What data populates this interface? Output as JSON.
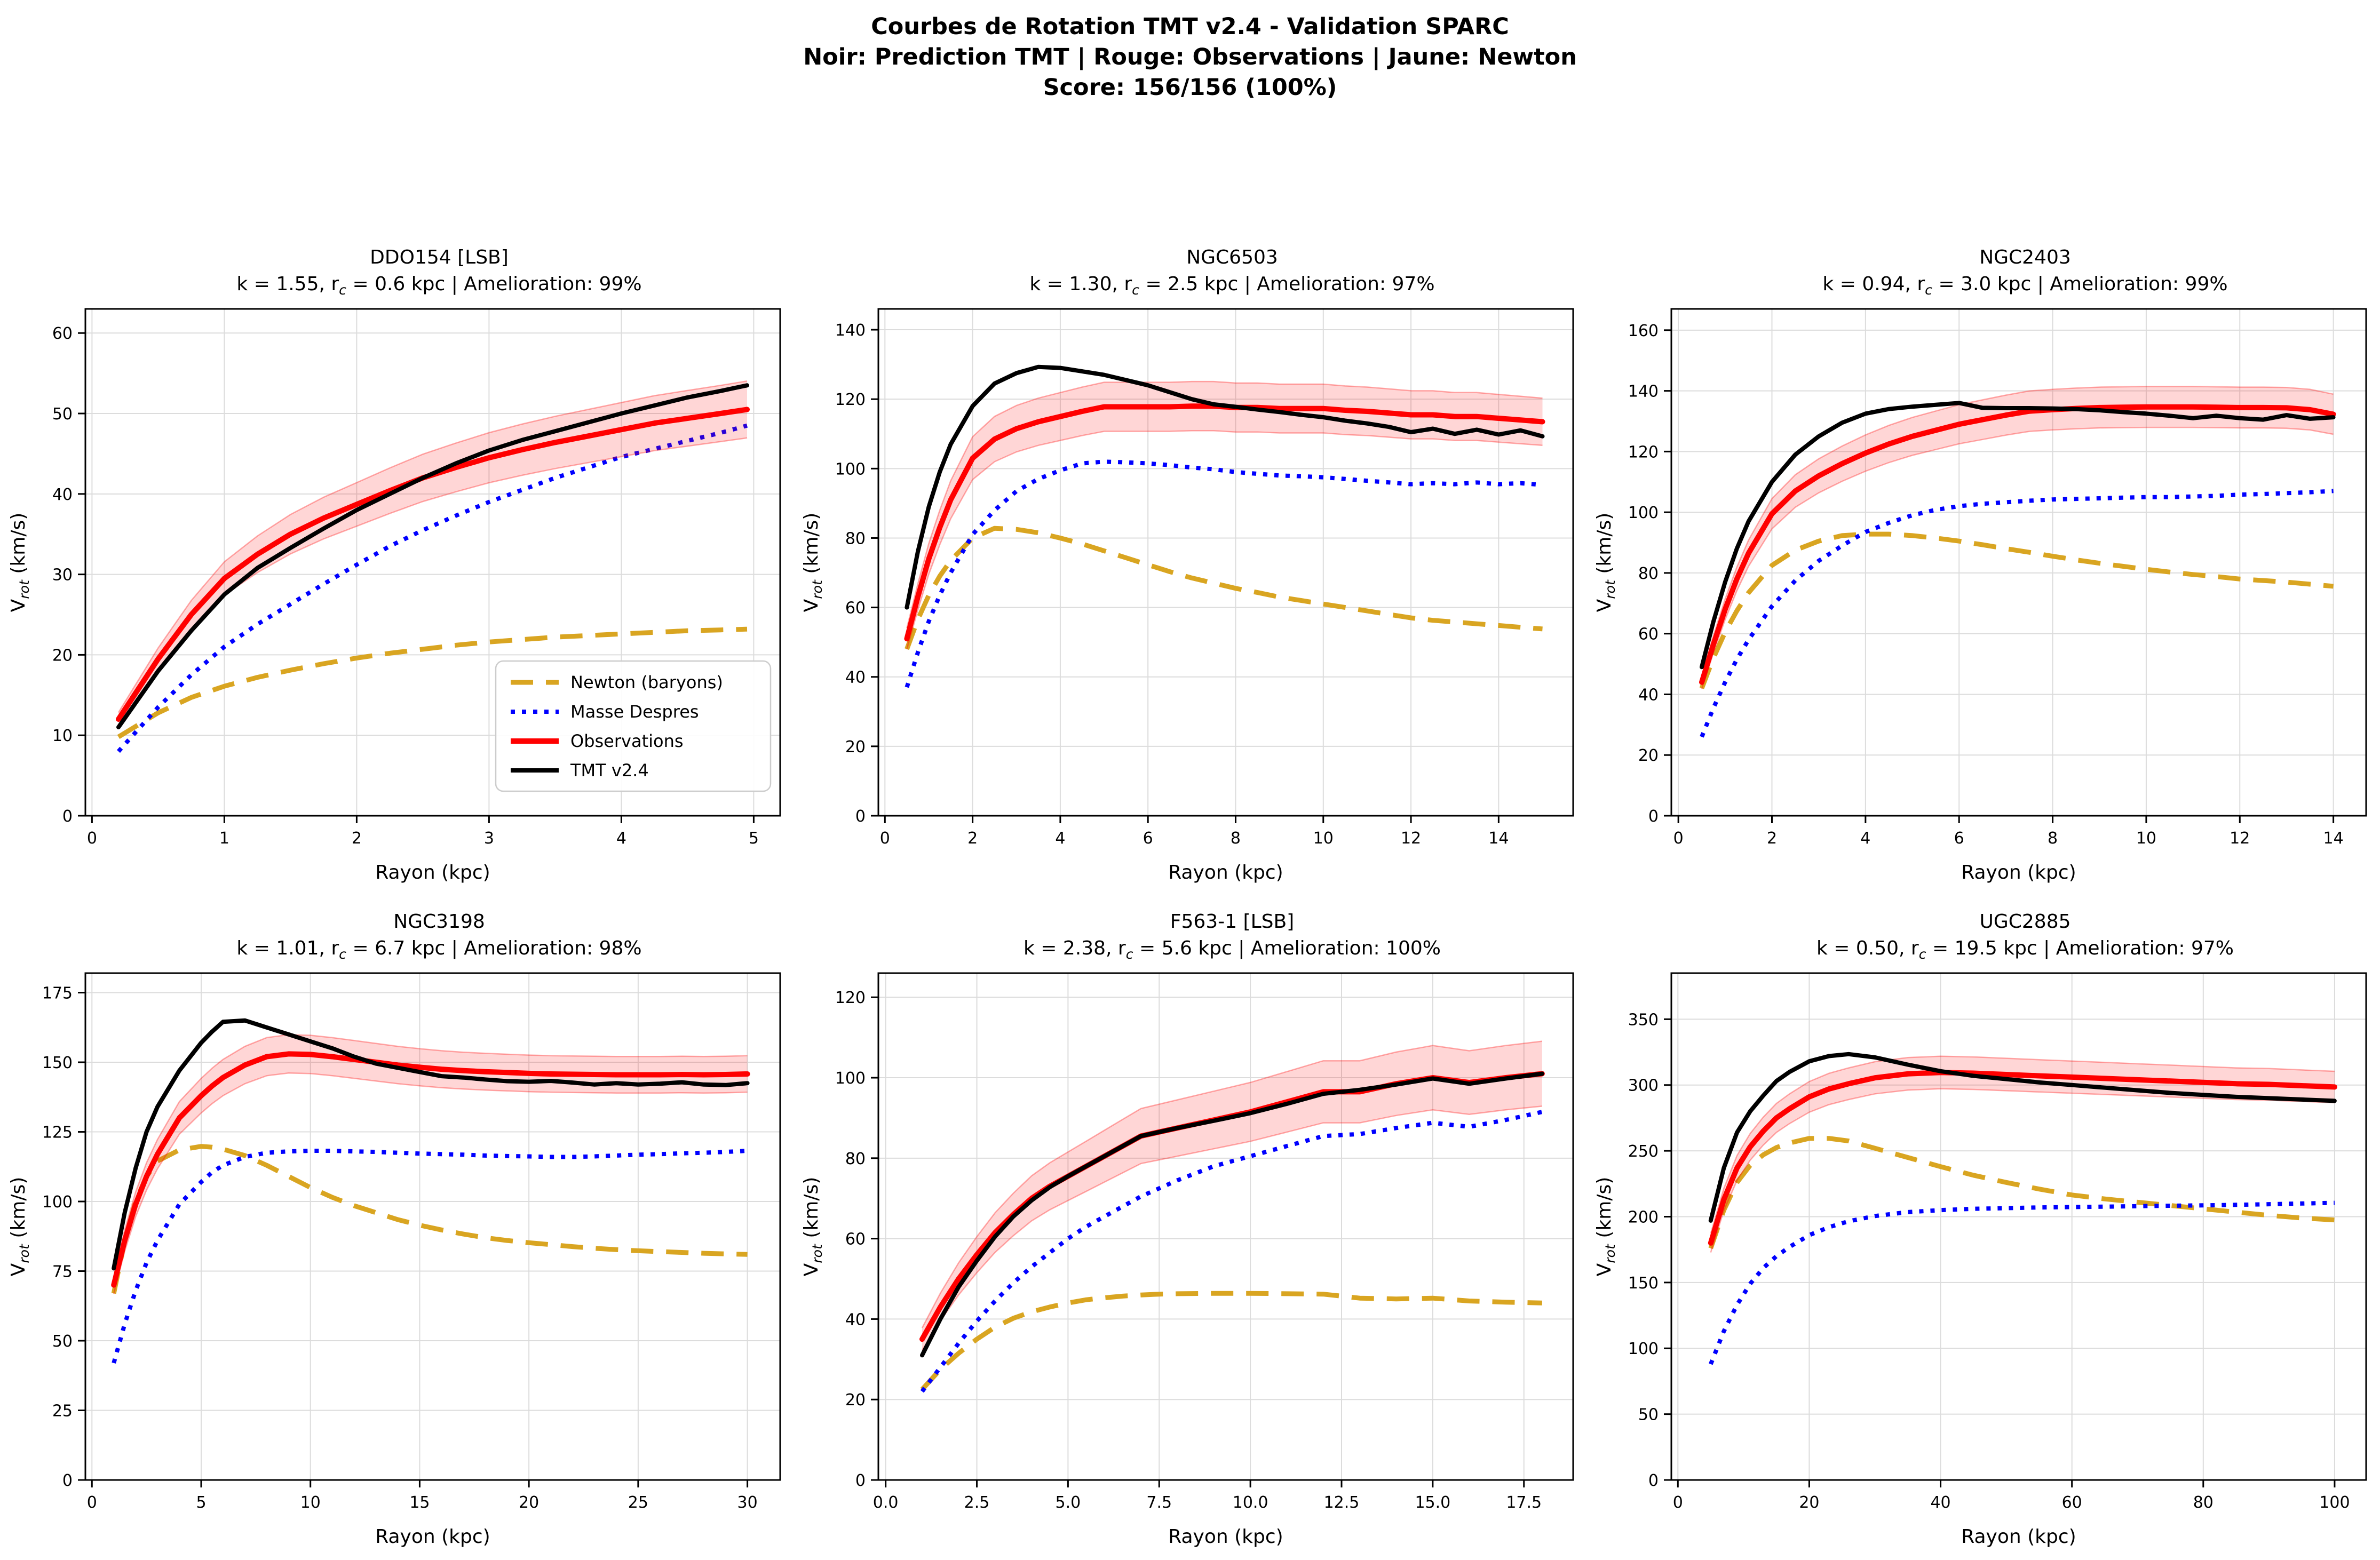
{
  "header": {
    "line1": "Courbes de Rotation TMT v2.4 - Validation SPARC",
    "line2": "Noir: Prediction TMT | Rouge: Observations | Jaune: Newton",
    "line3": "Score: 156/156 (100%)"
  },
  "colors": {
    "newton": "#D9A521",
    "despres": "#0000FF",
    "observations": "#FF0000",
    "tmt": "#000000",
    "band_fill_opacity": 0.16,
    "band_edge_opacity": 0.32,
    "grid": "#DCDCDC",
    "legend_border": "#CCCCCC"
  },
  "series_styles": {
    "newton": {
      "dash": "42 24",
      "width": 9
    },
    "despres": {
      "dash": "8 13",
      "width": 8
    },
    "observations": {
      "dash": null,
      "width": 10
    },
    "tmt": {
      "dash": null,
      "width": 8
    }
  },
  "legend": {
    "entries": [
      {
        "series": "newton",
        "label": "Newton (baryons)"
      },
      {
        "series": "despres",
        "label": "Masse Despres"
      },
      {
        "series": "observations",
        "label": "Observations"
      },
      {
        "series": "tmt",
        "label": "TMT v2.4"
      }
    ]
  },
  "chart_data": [
    {
      "type": "line",
      "title": "DDO154 [LSB]",
      "subtitle": "k = 1.55, r_{c} = 0.6 kpc | Amelioration: 99%",
      "xlabel": "Rayon (kpc)",
      "ylabel": "V_{rot} (km/s)",
      "xlim": [
        -0.05,
        5.2
      ],
      "ylim": [
        0,
        63
      ],
      "xticks": [
        0,
        1,
        2,
        3,
        4,
        5
      ],
      "xtick_labels": [
        "0",
        "1",
        "2",
        "3",
        "4",
        "5"
      ],
      "yticks": [
        0,
        10,
        20,
        30,
        40,
        50,
        60
      ],
      "ytick_labels": [
        "0",
        "10",
        "20",
        "30",
        "40",
        "50",
        "60"
      ],
      "band_frac": 0.07,
      "show_legend": true,
      "x": [
        0.2,
        0.5,
        0.75,
        1.0,
        1.25,
        1.5,
        1.75,
        2.0,
        2.25,
        2.5,
        2.75,
        3.0,
        3.25,
        3.5,
        3.75,
        4.0,
        4.25,
        4.5,
        4.75,
        4.95
      ],
      "series": {
        "newton": [
          9.8,
          12.8,
          14.7,
          16.1,
          17.2,
          18.1,
          18.9,
          19.6,
          20.2,
          20.7,
          21.2,
          21.6,
          21.9,
          22.2,
          22.4,
          22.6,
          22.8,
          23.0,
          23.1,
          23.2
        ],
        "despres": [
          8.0,
          13.5,
          17.5,
          21.0,
          23.8,
          26.3,
          28.8,
          31.2,
          33.5,
          35.5,
          37.3,
          39.0,
          40.5,
          42.0,
          43.3,
          44.6,
          45.6,
          46.6,
          47.6,
          48.5
        ],
        "observations": [
          12.0,
          19.5,
          25.0,
          29.5,
          32.5,
          35.0,
          37.0,
          38.7,
          40.4,
          42.0,
          43.3,
          44.5,
          45.5,
          46.4,
          47.2,
          48.0,
          48.8,
          49.4,
          50.0,
          50.5
        ],
        "tmt": [
          11.0,
          18.0,
          23.0,
          27.5,
          30.8,
          33.3,
          35.7,
          38.0,
          40.0,
          42.0,
          43.8,
          45.4,
          46.7,
          47.8,
          48.9,
          50.0,
          51.0,
          52.0,
          52.8,
          53.5
        ]
      }
    },
    {
      "type": "line",
      "title": "NGC6503",
      "subtitle": "k = 1.30, r_{c} = 2.5 kpc | Amelioration: 97%",
      "xlabel": "Rayon (kpc)",
      "ylabel": "V_{rot} (km/s)",
      "xlim": [
        -0.15,
        15.7
      ],
      "ylim": [
        0,
        146
      ],
      "xticks": [
        0,
        2,
        4,
        6,
        8,
        10,
        12,
        14
      ],
      "xtick_labels": [
        "0",
        "2",
        "4",
        "6",
        "8",
        "10",
        "12",
        "14"
      ],
      "yticks": [
        0,
        20,
        40,
        60,
        80,
        100,
        120,
        140
      ],
      "ytick_labels": [
        "0",
        "20",
        "40",
        "60",
        "80",
        "100",
        "120",
        "140"
      ],
      "band_frac": 0.06,
      "show_legend": false,
      "x": [
        0.5,
        0.75,
        1.0,
        1.25,
        1.5,
        2.0,
        2.5,
        3.0,
        3.5,
        4.0,
        4.5,
        5.0,
        5.5,
        6.0,
        6.5,
        7.0,
        7.5,
        8.0,
        8.5,
        9.0,
        9.5,
        10.0,
        10.5,
        11.0,
        11.5,
        12.0,
        12.5,
        13.0,
        13.5,
        14.0,
        14.5,
        15.0
      ],
      "series": {
        "newton": [
          48,
          56.5,
          63.5,
          69,
          73.5,
          80,
          82.8,
          82.5,
          81.5,
          80,
          78.3,
          76.3,
          74.3,
          72.3,
          70.3,
          68.5,
          67,
          65.5,
          64.3,
          63,
          62,
          61,
          60,
          59,
          58,
          57,
          56.3,
          55.8,
          55.3,
          54.8,
          54.3,
          53.8
        ],
        "despres": [
          37,
          47,
          56,
          63.5,
          70,
          81,
          88,
          93.5,
          97,
          99.5,
          101.5,
          102,
          101.8,
          101.5,
          101,
          100.3,
          99.8,
          99,
          98.5,
          98,
          97.8,
          97.5,
          97,
          96.5,
          96,
          95.5,
          95.8,
          95.5,
          96,
          95.5,
          95.8,
          95.3
        ],
        "observations": [
          51,
          63,
          74,
          83,
          91,
          103,
          108.5,
          111.5,
          113.5,
          115,
          116.5,
          117.8,
          117.8,
          117.8,
          117.8,
          118,
          118,
          117.6,
          117.6,
          117.3,
          117.3,
          117.3,
          116.8,
          116.5,
          116,
          115.5,
          115.5,
          115,
          115,
          114.5,
          114,
          113.5
        ],
        "tmt": [
          60,
          76,
          89,
          99,
          107,
          118,
          124.5,
          127.5,
          129.3,
          129,
          128,
          127,
          125.5,
          124,
          122,
          120,
          118.5,
          117.8,
          117,
          116.3,
          115.5,
          114.8,
          113.8,
          113,
          112,
          110.5,
          111.5,
          110,
          111.2,
          109.8,
          111,
          109.3
        ]
      }
    },
    {
      "type": "line",
      "title": "NGC2403",
      "subtitle": "k = 0.94, r_{c} = 3.0 kpc | Amelioration: 99%",
      "xlabel": "Rayon (kpc)",
      "ylabel": "V_{rot} (km/s)",
      "xlim": [
        -0.15,
        14.7
      ],
      "ylim": [
        0,
        167
      ],
      "xticks": [
        0,
        2,
        4,
        6,
        8,
        10,
        12,
        14
      ],
      "xtick_labels": [
        "0",
        "2",
        "4",
        "6",
        "8",
        "10",
        "12",
        "14"
      ],
      "yticks": [
        0,
        20,
        40,
        60,
        80,
        100,
        120,
        140,
        160
      ],
      "ytick_labels": [
        "0",
        "20",
        "40",
        "60",
        "80",
        "100",
        "120",
        "140",
        "160"
      ],
      "band_frac": 0.05,
      "show_legend": false,
      "x": [
        0.5,
        0.75,
        1.0,
        1.25,
        1.5,
        2.0,
        2.5,
        3.0,
        3.5,
        4.0,
        4.5,
        5.0,
        5.5,
        6.0,
        6.5,
        7.0,
        7.5,
        8.0,
        8.5,
        9.0,
        9.5,
        10.0,
        10.5,
        11.0,
        11.5,
        12.0,
        12.5,
        13.0,
        13.5,
        14.0
      ],
      "series": {
        "newton": [
          42,
          52,
          60.5,
          67.5,
          73.5,
          82.5,
          87.5,
          90.5,
          92.3,
          92.8,
          92.8,
          92.3,
          91.5,
          90.5,
          89.3,
          88,
          86.8,
          85.5,
          84.3,
          83.2,
          82.2,
          81.2,
          80.3,
          79.5,
          78.8,
          78,
          77.5,
          77,
          76.3,
          75.6
        ],
        "despres": [
          26,
          35.5,
          44,
          51.5,
          58,
          69,
          77.5,
          84,
          89,
          93.5,
          96.5,
          99,
          100.8,
          102,
          102.8,
          103.3,
          103.8,
          104.2,
          104.4,
          104.6,
          104.8,
          105,
          105,
          105.2,
          105.4,
          105.8,
          106,
          106.3,
          106.6,
          107
        ],
        "observations": [
          44,
          56.5,
          68,
          78,
          86.5,
          99.5,
          107,
          112,
          116,
          119.5,
          122.5,
          125,
          127,
          129,
          130.5,
          132,
          133.3,
          133.8,
          134.2,
          134.5,
          134.6,
          134.7,
          134.7,
          134.7,
          134.6,
          134.5,
          134.5,
          134.4,
          133.8,
          132.3
        ],
        "tmt": [
          49,
          64,
          77,
          88,
          97,
          110,
          119,
          125,
          129.5,
          132.5,
          134,
          134.8,
          135.4,
          136,
          134.4,
          134.3,
          134.3,
          134.2,
          134,
          133.6,
          133,
          132.5,
          131.8,
          131,
          131.8,
          131,
          130.5,
          132,
          130.8,
          131.3
        ]
      }
    },
    {
      "type": "line",
      "title": "NGC3198",
      "subtitle": "k = 1.01, r_{c} = 6.7 kpc | Amelioration: 98%",
      "xlabel": "Rayon (kpc)",
      "ylabel": "V_{rot} (km/s)",
      "xlim": [
        -0.3,
        31.5
      ],
      "ylim": [
        0,
        182
      ],
      "xticks": [
        0,
        5,
        10,
        15,
        20,
        25,
        30
      ],
      "xtick_labels": [
        "0",
        "5",
        "10",
        "15",
        "20",
        "25",
        "30"
      ],
      "yticks": [
        0,
        25,
        50,
        75,
        100,
        125,
        150,
        175
      ],
      "ytick_labels": [
        "0",
        "25",
        "50",
        "75",
        "100",
        "125",
        "150",
        "175"
      ],
      "band_frac": 0.045,
      "show_legend": false,
      "x": [
        1,
        1.5,
        2,
        2.5,
        3,
        4,
        5,
        5.5,
        6,
        7,
        8,
        9,
        10,
        11,
        12,
        13,
        14,
        15,
        16,
        17,
        18,
        19,
        20,
        21,
        22,
        23,
        24,
        25,
        26,
        27,
        28,
        29,
        30
      ],
      "series": {
        "newton": [
          67,
          86,
          100,
          109,
          114.5,
          118.5,
          119.8,
          119.5,
          118.8,
          116.5,
          113,
          109,
          105,
          101.5,
          98.5,
          96,
          93.5,
          91.5,
          89.8,
          88.3,
          87,
          86,
          85.2,
          84.5,
          83.8,
          83.2,
          82.7,
          82.3,
          82,
          81.7,
          81.4,
          81.2,
          81
        ],
        "despres": [
          42,
          56,
          68,
          78,
          86,
          99,
          107,
          110.5,
          113,
          116,
          117.5,
          118,
          118.2,
          118.2,
          118,
          117.8,
          117.5,
          117.2,
          117,
          116.8,
          116.5,
          116.3,
          116.2,
          116,
          116,
          116.2,
          116.5,
          116.8,
          117,
          117.3,
          117.5,
          117.8,
          118.2
        ],
        "observations": [
          70,
          86,
          99,
          109,
          117,
          130,
          138,
          141.5,
          144.5,
          149,
          152,
          153,
          152.8,
          152,
          151,
          150,
          149,
          148.2,
          147.5,
          147,
          146.6,
          146.3,
          146,
          145.8,
          145.7,
          145.6,
          145.5,
          145.5,
          145.5,
          145.6,
          145.5,
          145.6,
          145.8
        ],
        "tmt": [
          76,
          96,
          112,
          125,
          134,
          147,
          157,
          161,
          164.5,
          165,
          162.5,
          160,
          157.5,
          155,
          152,
          149.5,
          148,
          146.5,
          145,
          144.5,
          143.8,
          143.2,
          143,
          143.3,
          142.7,
          142,
          142.5,
          142,
          142.3,
          142.8,
          142,
          141.8,
          142.5
        ]
      }
    },
    {
      "type": "line",
      "title": "F563-1 [LSB]",
      "subtitle": "k = 2.38, r_{c} = 5.6 kpc | Amelioration: 100%",
      "xlabel": "Rayon (kpc)",
      "ylabel": "V_{rot} (km/s)",
      "xlim": [
        -0.2,
        18.85
      ],
      "ylim": [
        0,
        126
      ],
      "xticks": [
        0,
        2.5,
        5,
        7.5,
        10,
        12.5,
        15,
        17.5
      ],
      "xtick_labels": [
        "0.0",
        "2.5",
        "5.0",
        "7.5",
        "10.0",
        "12.5",
        "15.0",
        "17.5"
      ],
      "yticks": [
        0,
        20,
        40,
        60,
        80,
        100,
        120
      ],
      "ytick_labels": [
        "0",
        "20",
        "40",
        "60",
        "80",
        "100",
        "120"
      ],
      "band_frac": 0.08,
      "show_legend": false,
      "x": [
        1,
        1.5,
        2,
        2.5,
        3,
        3.5,
        4,
        4.5,
        5,
        5.5,
        6,
        6.5,
        7,
        7.5,
        8,
        9,
        10,
        11,
        12,
        13,
        14,
        15,
        16,
        17,
        18
      ],
      "series": {
        "newton": [
          22.5,
          27.5,
          31.5,
          35,
          38,
          40.2,
          41.8,
          43,
          44,
          44.8,
          45.3,
          45.7,
          46,
          46.2,
          46.3,
          46.4,
          46.4,
          46.3,
          46.2,
          45.2,
          45,
          45.2,
          44.5,
          44.2,
          44
        ],
        "despres": [
          22,
          28,
          34,
          39.5,
          44.5,
          49,
          53,
          56.5,
          60,
          63,
          65.5,
          68,
          70.5,
          72.5,
          74.5,
          78,
          80.5,
          83,
          85.5,
          86,
          87.5,
          88.8,
          87.8,
          89.5,
          91.5
        ],
        "observations": [
          35,
          43,
          50,
          56,
          61.5,
          66,
          70,
          73,
          75.5,
          78,
          80.5,
          83,
          85.5,
          86.5,
          87.5,
          89.5,
          91.5,
          94,
          96.5,
          96.5,
          98.5,
          100,
          98.8,
          100,
          101
        ],
        "tmt": [
          31,
          40,
          48,
          54.5,
          60.5,
          65.5,
          69.5,
          72.8,
          75.5,
          78,
          80.5,
          83,
          85.5,
          86.5,
          87.5,
          89.3,
          91.2,
          93.5,
          96,
          97,
          98.3,
          99.8,
          98.5,
          99.8,
          101
        ]
      }
    },
    {
      "type": "line",
      "title": "UGC2885",
      "subtitle": "k = 0.50, r_{c} = 19.5 kpc | Amelioration: 97%",
      "xlabel": "Rayon (kpc)",
      "ylabel": "V_{rot} (km/s)",
      "xlim": [
        -1,
        104.8
      ],
      "ylim": [
        0,
        385
      ],
      "xticks": [
        0,
        20,
        40,
        60,
        80,
        100
      ],
      "xtick_labels": [
        "0",
        "20",
        "40",
        "60",
        "80",
        "100"
      ],
      "yticks": [
        0,
        50,
        100,
        150,
        200,
        250,
        300,
        350
      ],
      "ytick_labels": [
        "0",
        "50",
        "100",
        "150",
        "200",
        "250",
        "300",
        "350"
      ],
      "band_frac": 0.04,
      "show_legend": false,
      "x": [
        5,
        7,
        9,
        11,
        13,
        15,
        17,
        20,
        23,
        26,
        30,
        35,
        40,
        45,
        50,
        55,
        60,
        65,
        70,
        75,
        80,
        85,
        90,
        95,
        100
      ],
      "series": {
        "newton": [
          176,
          205,
          226,
          239,
          247,
          252.5,
          256,
          259.5,
          259.5,
          257.5,
          252,
          245,
          238,
          231.5,
          226,
          221,
          216.5,
          213.5,
          211,
          208.5,
          206,
          203.5,
          201,
          199,
          197.5
        ],
        "despres": [
          88,
          113,
          133,
          149,
          161,
          170,
          177,
          186,
          192,
          196.5,
          200.5,
          203.5,
          205,
          206,
          206.5,
          207,
          207.3,
          207.6,
          208,
          208.3,
          208.6,
          209,
          209.5,
          210,
          210.5
        ],
        "observations": [
          180,
          213,
          237,
          253,
          265,
          275,
          282,
          291,
          297,
          301,
          305.5,
          308.5,
          309.5,
          309,
          308,
          307,
          306,
          305,
          304,
          303,
          302,
          301,
          300.5,
          299.5,
          298.5
        ],
        "tmt": [
          197,
          237,
          264,
          280,
          292,
          303,
          310,
          318,
          322,
          323.5,
          321,
          315.5,
          310.5,
          307,
          304.5,
          302,
          300,
          298,
          296,
          294,
          292.5,
          291,
          290,
          289,
          288
        ]
      }
    }
  ]
}
